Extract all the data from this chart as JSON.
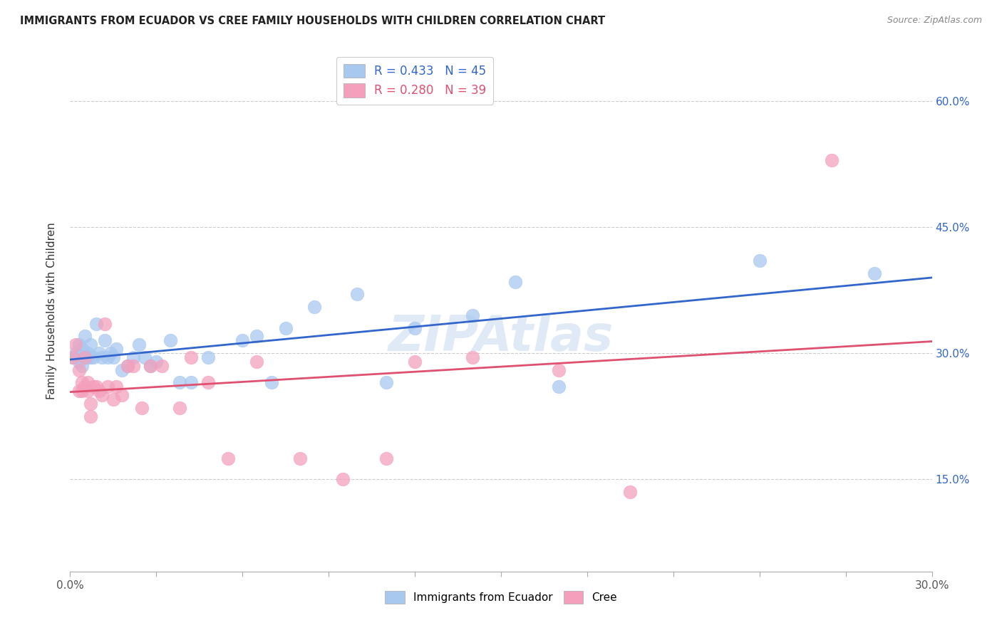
{
  "title": "IMMIGRANTS FROM ECUADOR VS CREE FAMILY HOUSEHOLDS WITH CHILDREN CORRELATION CHART",
  "source": "Source: ZipAtlas.com",
  "ylabel": "Family Households with Children",
  "legend_label_blue": "Immigrants from Ecuador",
  "legend_label_pink": "Cree",
  "watermark": "ZIPAtlas",
  "xlim": [
    0.0,
    0.3
  ],
  "ylim": [
    0.04,
    0.66
  ],
  "blue_R": 0.433,
  "blue_N": 45,
  "pink_R": 0.28,
  "pink_N": 39,
  "blue_color": "#a8c8f0",
  "pink_color": "#f4a0bc",
  "blue_line_color": "#3366cc",
  "pink_line_color": "#e05070",
  "y_ticks": [
    0.15,
    0.3,
    0.45,
    0.6
  ],
  "x_ticks": [
    0.0,
    0.03,
    0.06,
    0.09,
    0.12,
    0.15,
    0.18,
    0.21,
    0.24,
    0.27,
    0.3
  ],
  "blue_x": [
    0.001,
    0.002,
    0.003,
    0.003,
    0.004,
    0.004,
    0.005,
    0.005,
    0.006,
    0.006,
    0.007,
    0.007,
    0.008,
    0.009,
    0.01,
    0.011,
    0.012,
    0.013,
    0.014,
    0.015,
    0.016,
    0.018,
    0.02,
    0.022,
    0.024,
    0.026,
    0.028,
    0.03,
    0.035,
    0.038,
    0.042,
    0.048,
    0.06,
    0.065,
    0.07,
    0.075,
    0.085,
    0.1,
    0.11,
    0.12,
    0.14,
    0.155,
    0.17,
    0.24,
    0.28
  ],
  "blue_y": [
    0.295,
    0.3,
    0.29,
    0.31,
    0.285,
    0.305,
    0.295,
    0.32,
    0.295,
    0.3,
    0.31,
    0.295,
    0.295,
    0.335,
    0.3,
    0.295,
    0.315,
    0.295,
    0.3,
    0.295,
    0.305,
    0.28,
    0.285,
    0.295,
    0.31,
    0.295,
    0.285,
    0.29,
    0.315,
    0.265,
    0.265,
    0.295,
    0.315,
    0.32,
    0.265,
    0.33,
    0.355,
    0.37,
    0.265,
    0.33,
    0.345,
    0.385,
    0.26,
    0.41,
    0.395
  ],
  "pink_x": [
    0.001,
    0.002,
    0.003,
    0.003,
    0.004,
    0.004,
    0.005,
    0.005,
    0.006,
    0.006,
    0.007,
    0.007,
    0.008,
    0.009,
    0.01,
    0.011,
    0.012,
    0.013,
    0.015,
    0.016,
    0.018,
    0.02,
    0.022,
    0.025,
    0.028,
    0.032,
    0.038,
    0.042,
    0.048,
    0.055,
    0.065,
    0.08,
    0.095,
    0.11,
    0.12,
    0.14,
    0.17,
    0.195,
    0.265
  ],
  "pink_y": [
    0.295,
    0.31,
    0.28,
    0.255,
    0.265,
    0.255,
    0.295,
    0.26,
    0.265,
    0.255,
    0.24,
    0.225,
    0.26,
    0.26,
    0.255,
    0.25,
    0.335,
    0.26,
    0.245,
    0.26,
    0.25,
    0.285,
    0.285,
    0.235,
    0.285,
    0.285,
    0.235,
    0.295,
    0.265,
    0.175,
    0.29,
    0.175,
    0.15,
    0.175,
    0.29,
    0.295,
    0.28,
    0.135,
    0.53
  ]
}
